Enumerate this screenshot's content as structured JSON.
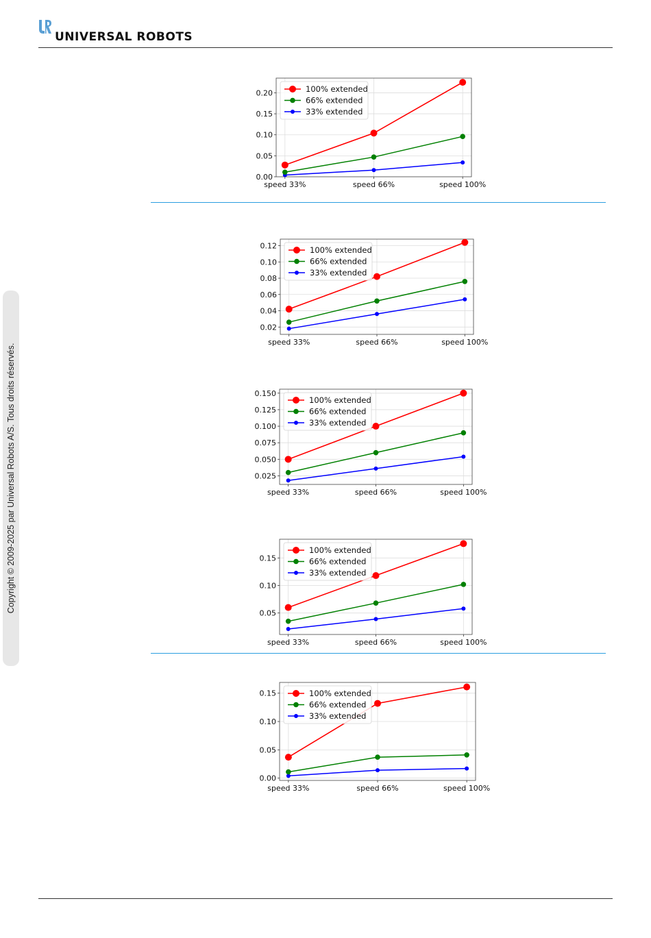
{
  "header": {
    "brand": "UNIVERSAL ROBOTS"
  },
  "sidebar": {
    "copyright": "Copyright © 2009-2025 par Universal Robots A/S. Tous droits réservés."
  },
  "colors": {
    "red": "#ff0000",
    "green": "#008000",
    "blue": "#0000ff",
    "divider": "#2a9ee0",
    "logo": "#5a9fd4"
  },
  "chart_data": [
    {
      "type": "line",
      "categories": [
        "speed 33%",
        "speed 66%",
        "speed 100%"
      ],
      "yticks": [
        "0.00",
        "0.05",
        "0.10",
        "0.15",
        "0.20"
      ],
      "ylim": [
        0.0,
        0.235
      ],
      "grid": true,
      "legend": "top-left",
      "series": [
        {
          "name": "100% extended",
          "values": [
            0.028,
            0.104,
            0.225
          ],
          "color": "#ff0000"
        },
        {
          "name": "66% extended",
          "values": [
            0.011,
            0.047,
            0.096
          ],
          "color": "#008000"
        },
        {
          "name": "33% extended",
          "values": [
            0.004,
            0.016,
            0.034
          ],
          "color": "#0000ff"
        }
      ]
    },
    {
      "type": "line",
      "categories": [
        "speed 33%",
        "speed 66%",
        "speed 100%"
      ],
      "yticks": [
        "0.02",
        "0.04",
        "0.06",
        "0.08",
        "0.10",
        "0.12"
      ],
      "ylim": [
        0.011,
        0.128
      ],
      "grid": true,
      "legend": "top-left",
      "series": [
        {
          "name": "100% extended",
          "values": [
            0.042,
            0.082,
            0.124
          ],
          "color": "#ff0000"
        },
        {
          "name": "66% extended",
          "values": [
            0.026,
            0.052,
            0.076
          ],
          "color": "#008000"
        },
        {
          "name": "33% extended",
          "values": [
            0.018,
            0.036,
            0.054
          ],
          "color": "#0000ff"
        }
      ]
    },
    {
      "type": "line",
      "categories": [
        "speed 33%",
        "speed 66%",
        "speed 100%"
      ],
      "yticks": [
        "0.025",
        "0.050",
        "0.075",
        "0.100",
        "0.125",
        "0.150"
      ],
      "ylim": [
        0.012,
        0.156
      ],
      "grid": true,
      "legend": "top-left",
      "series": [
        {
          "name": "100% extended",
          "values": [
            0.05,
            0.1,
            0.15
          ],
          "color": "#ff0000"
        },
        {
          "name": "66% extended",
          "values": [
            0.03,
            0.06,
            0.09
          ],
          "color": "#008000"
        },
        {
          "name": "33% extended",
          "values": [
            0.018,
            0.036,
            0.054
          ],
          "color": "#0000ff"
        }
      ]
    },
    {
      "type": "line",
      "categories": [
        "speed 33%",
        "speed 66%",
        "speed 100%"
      ],
      "yticks": [
        "0.05",
        "0.10",
        "0.15"
      ],
      "ylim": [
        0.011,
        0.184
      ],
      "grid": true,
      "legend": "top-left",
      "series": [
        {
          "name": "100% extended",
          "values": [
            0.06,
            0.118,
            0.176
          ],
          "color": "#ff0000"
        },
        {
          "name": "66% extended",
          "values": [
            0.035,
            0.068,
            0.102
          ],
          "color": "#008000"
        },
        {
          "name": "33% extended",
          "values": [
            0.021,
            0.039,
            0.058
          ],
          "color": "#0000ff"
        }
      ]
    },
    {
      "type": "line",
      "categories": [
        "speed 33%",
        "speed 66%",
        "speed 100%"
      ],
      "yticks": [
        "0.00",
        "0.05",
        "0.10",
        "0.15"
      ],
      "ylim": [
        -0.004,
        0.169
      ],
      "grid": true,
      "legend": "top-left",
      "series": [
        {
          "name": "100% extended",
          "values": [
            0.037,
            0.132,
            0.161
          ],
          "color": "#ff0000"
        },
        {
          "name": "66% extended",
          "values": [
            0.011,
            0.037,
            0.041
          ],
          "color": "#008000"
        },
        {
          "name": "33% extended",
          "values": [
            0.004,
            0.014,
            0.017
          ],
          "color": "#0000ff"
        }
      ]
    }
  ]
}
